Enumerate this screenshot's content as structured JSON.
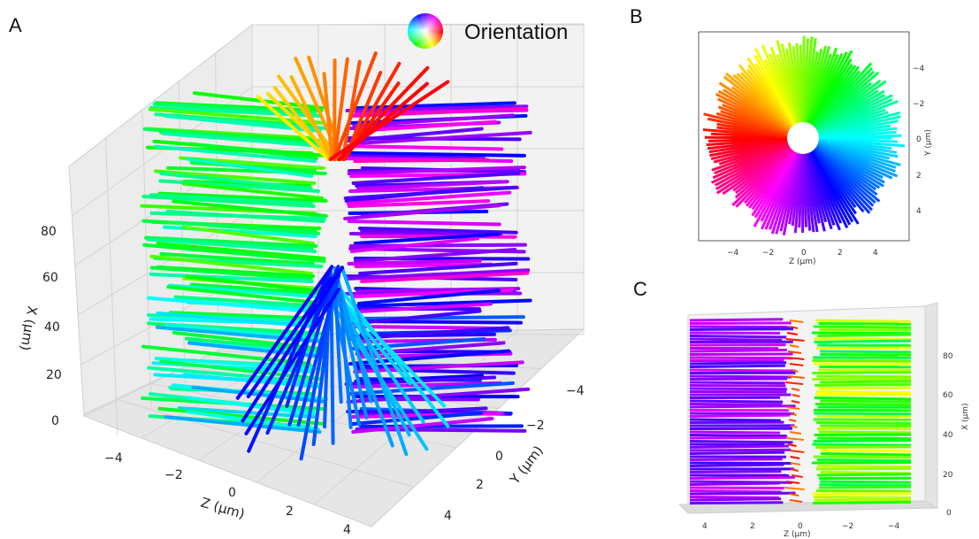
{
  "figure": {
    "legend_label": "Orientation",
    "panels": [
      {
        "letter": "A",
        "axes": {
          "x_label": "X (µm)",
          "x_ticks": [
            "0",
            "20",
            "40",
            "60",
            "80"
          ],
          "y_label": "Y (µm)",
          "y_ticks": [
            "−4",
            "−2",
            "0",
            "2",
            "4"
          ],
          "z_label": "Z (µm)",
          "z_ticks": [
            "−4",
            "−2",
            "0",
            "2",
            "4"
          ]
        }
      },
      {
        "letter": "B",
        "axes": {
          "x_label": "Z (µm)",
          "x_ticks": [
            "−4",
            "−2",
            "0",
            "2",
            "4"
          ],
          "y_label": "Y (µm)",
          "y_ticks": [
            "−4",
            "−2",
            "0",
            "2",
            "4"
          ]
        }
      },
      {
        "letter": "C",
        "axes": {
          "x_label": "Z (µm)",
          "x_ticks": [
            "4",
            "2",
            "0",
            "−2",
            "−4"
          ],
          "y_label": "X (µm)",
          "y_ticks": [
            "0",
            "20",
            "40",
            "60",
            "80"
          ]
        }
      }
    ]
  }
}
